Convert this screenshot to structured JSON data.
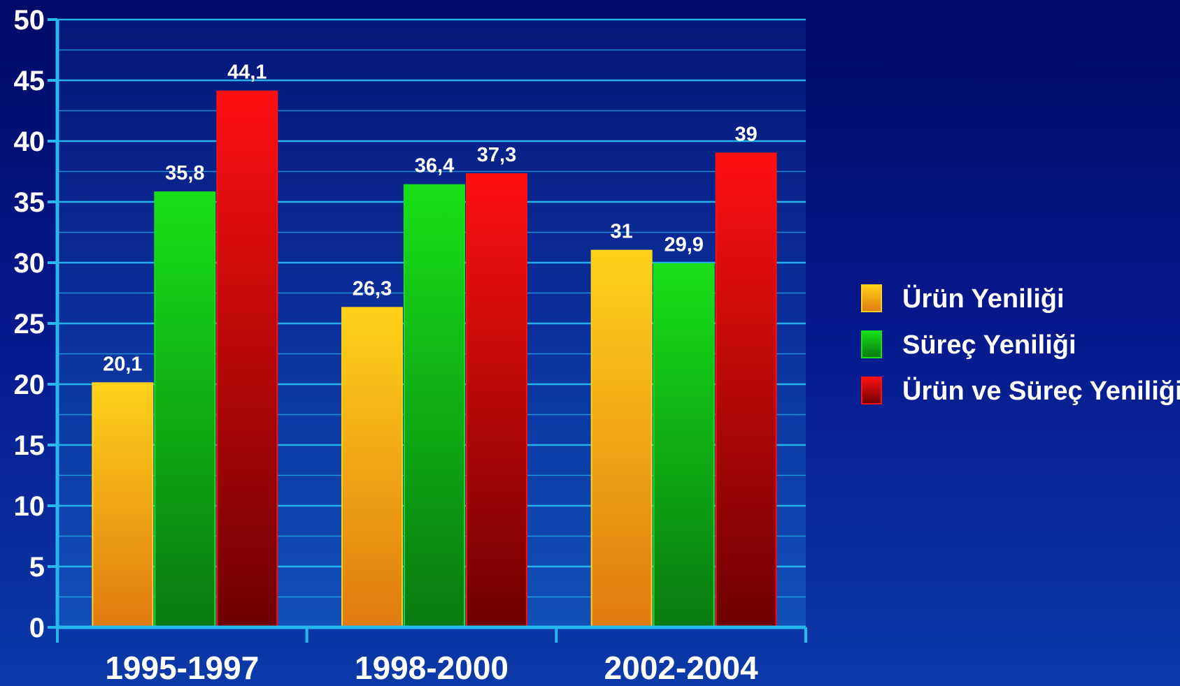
{
  "chart_data": {
    "type": "bar",
    "title": "",
    "xlabel": "",
    "ylabel": "",
    "categories": [
      "1995-1997",
      "1998-2000",
      "2002-2004"
    ],
    "series": [
      {
        "name": "Ürün Yeniliği",
        "values": [
          20.1,
          26.3,
          31
        ],
        "labels": [
          "20,1",
          "26,3",
          "31"
        ],
        "color_top": "#ffd21a",
        "color_bottom": "#e07a10"
      },
      {
        "name": "Süreç Yeniliği",
        "values": [
          35.8,
          36.4,
          29.9
        ],
        "labels": [
          "35,8",
          "36,4",
          "29,9"
        ],
        "color_top": "#18e018",
        "color_bottom": "#087a10"
      },
      {
        "name": "Ürün ve Süreç Yeniliği",
        "values": [
          44.1,
          37.3,
          39
        ],
        "labels": [
          "44,1",
          "37,3",
          "39"
        ],
        "color_top": "#ff1010",
        "color_bottom": "#6e0000"
      }
    ],
    "ylim": [
      0,
      50
    ],
    "yticks": [
      0,
      5,
      10,
      15,
      20,
      25,
      30,
      35,
      40,
      45,
      50
    ],
    "grid": true,
    "legend_position": "right",
    "colors": {
      "axis": "#27b8f0",
      "grid": "#27b8f0",
      "text": "#ffffff"
    }
  }
}
